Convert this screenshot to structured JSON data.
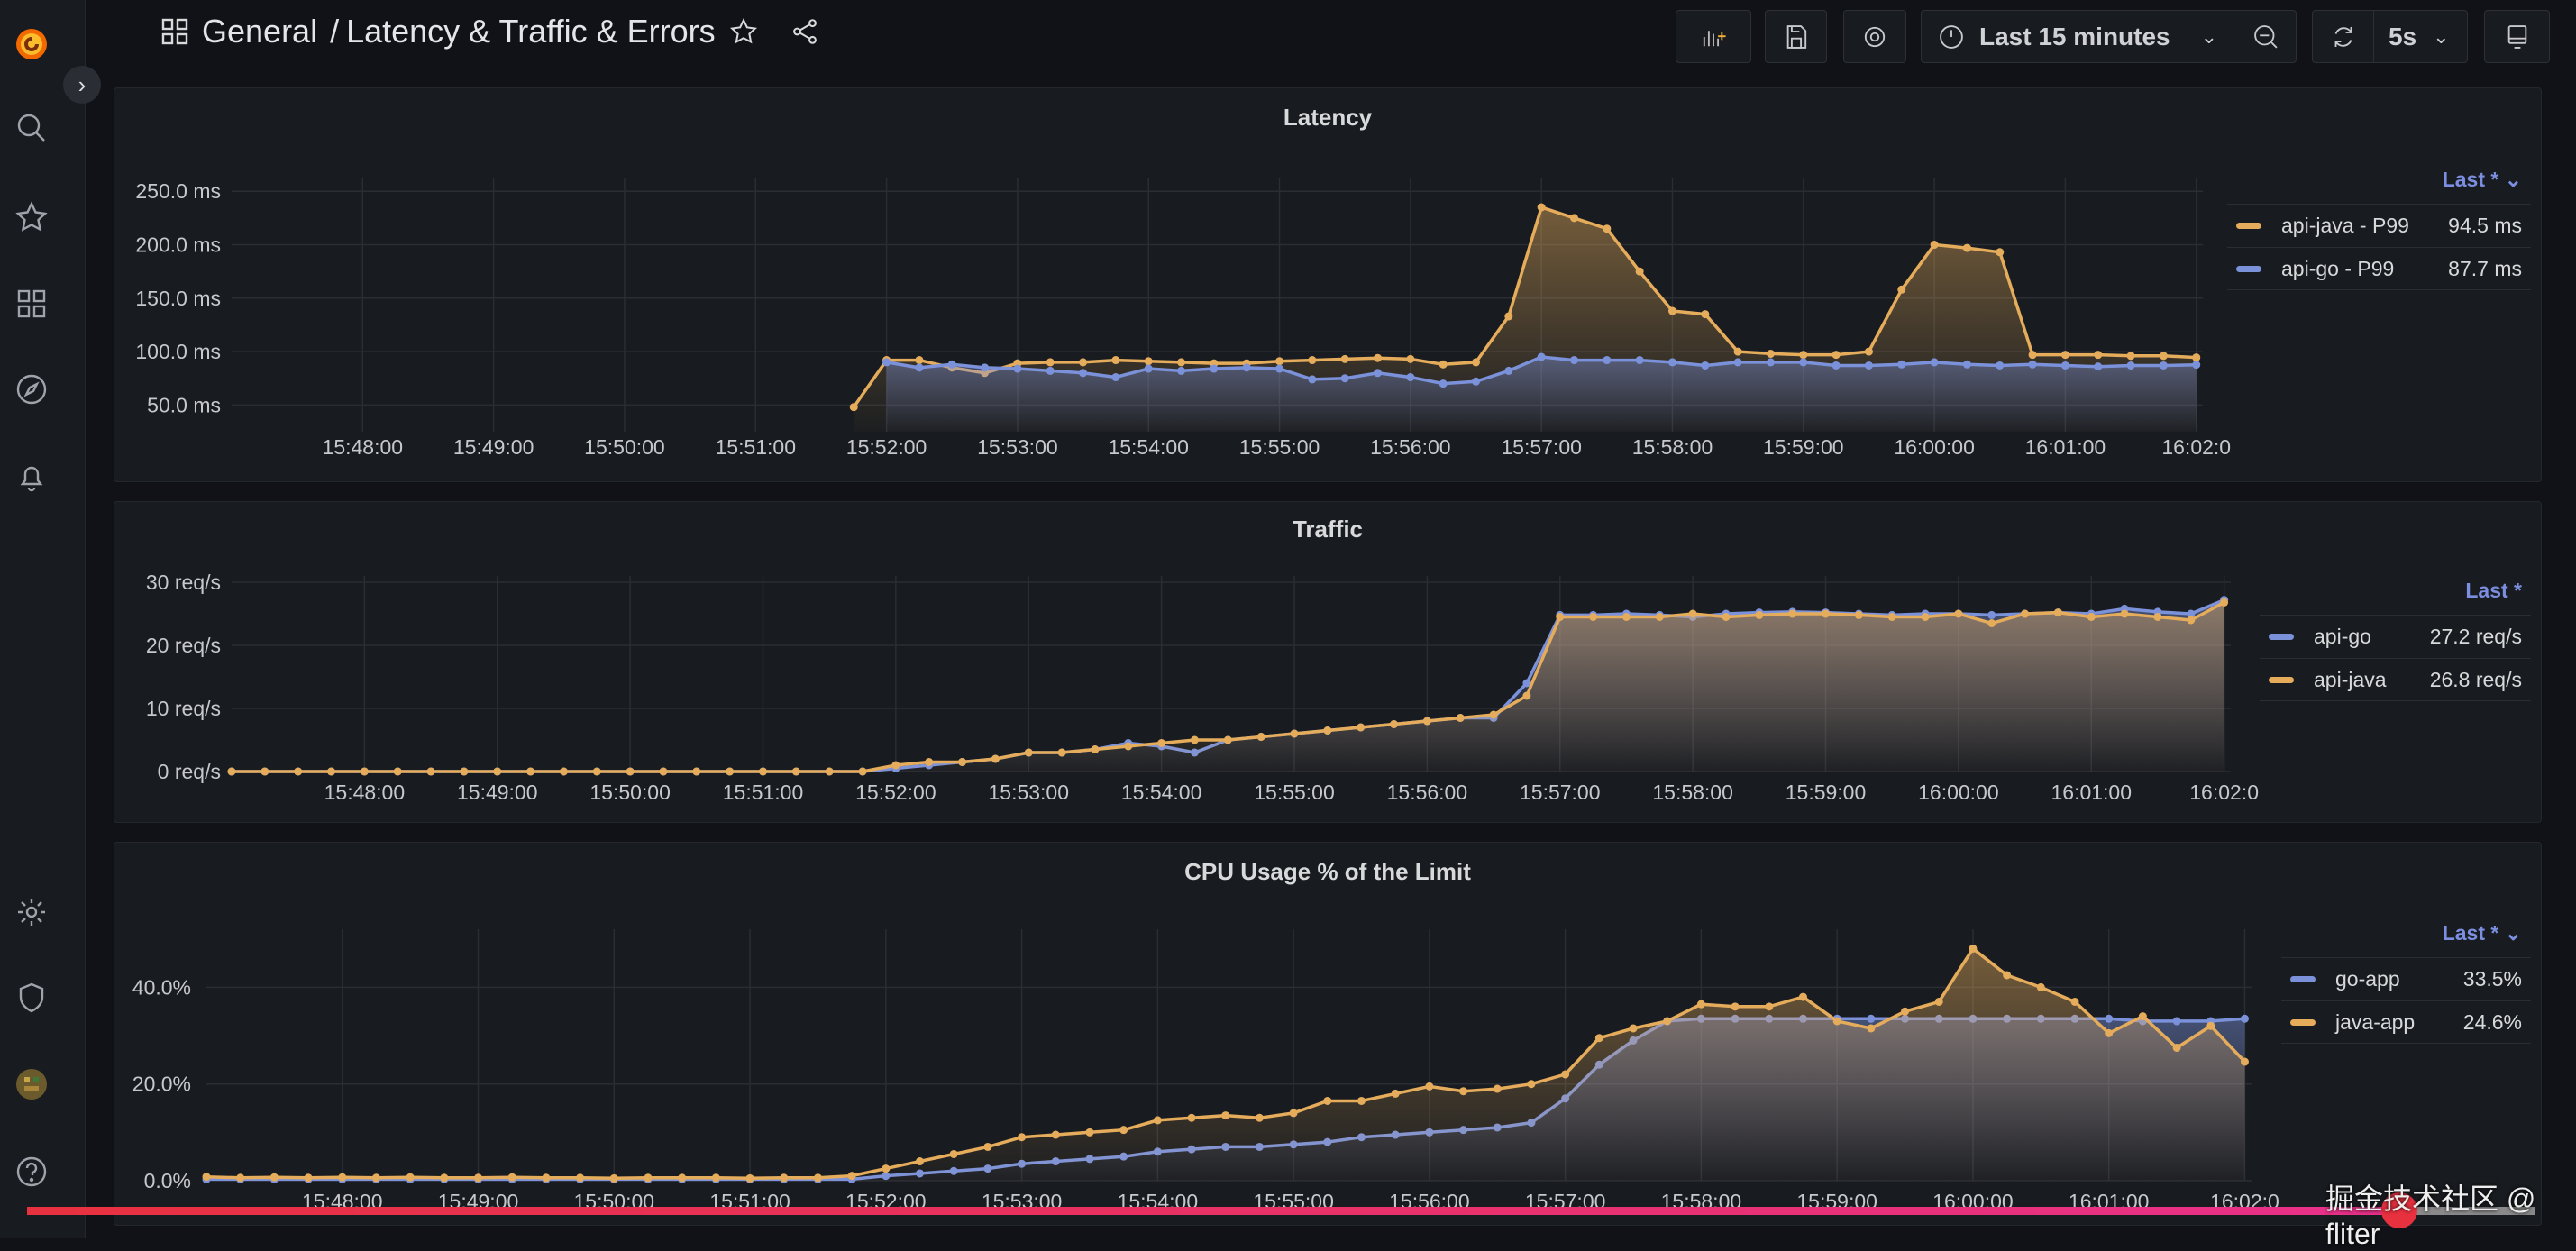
{
  "header": {
    "folder": "General",
    "separator": "/",
    "dashboard": "Latency & Traffic & Errors",
    "time_range": "Last 15 minutes",
    "refresh_interval": "5s"
  },
  "colors": {
    "java": "#e5ac5c",
    "go": "#7b92db",
    "accent": "#f46800"
  },
  "panels": [
    {
      "title": "Latency",
      "legend_header": "Last *",
      "legend": [
        {
          "name": "api-java - P99",
          "value": "94.5 ms",
          "color": "#e5ac5c"
        },
        {
          "name": "api-go - P99",
          "value": "87.7 ms",
          "color": "#7b92db"
        }
      ]
    },
    {
      "title": "Traffic",
      "legend_header": "Last *",
      "legend": [
        {
          "name": "api-go",
          "value": "27.2 req/s",
          "color": "#7b92db"
        },
        {
          "name": "api-java",
          "value": "26.8 req/s",
          "color": "#e5ac5c"
        }
      ]
    },
    {
      "title": "CPU Usage % of the Limit",
      "legend_header": "Last *",
      "legend": [
        {
          "name": "go-app",
          "value": "33.5%",
          "color": "#7b92db"
        },
        {
          "name": "java-app",
          "value": "24.6%",
          "color": "#e5ac5c"
        }
      ]
    }
  ],
  "watermark": "掘金技术社区 @ fliter",
  "video_progress": 0.946,
  "chart_data": [
    {
      "type": "line",
      "title": "Latency",
      "ylim": [
        25,
        262
      ],
      "yticks": [
        50,
        100,
        150,
        200,
        250
      ],
      "ytick_labels": [
        "50.0 ms",
        "100.0 ms",
        "150.0 ms",
        "200.0 ms",
        "250.0 ms"
      ],
      "xticks": [
        "15:48:00",
        "15:49:00",
        "15:50:00",
        "15:51:00",
        "15:52:00",
        "15:53:00",
        "15:54:00",
        "15:55:00",
        "15:56:00",
        "15:57:00",
        "15:58:00",
        "15:59:00",
        "16:00:00",
        "16:01:00",
        "16:02:0"
      ],
      "x_start": "15:51:45",
      "x_step_s": 15,
      "series": [
        {
          "name": "api-java - P99",
          "color": "#e5ac5c",
          "values": [
            48,
            92,
            92,
            85,
            80,
            89,
            90,
            90,
            92,
            91,
            90,
            89,
            89,
            91,
            92,
            93,
            94,
            93,
            88,
            90,
            133,
            235,
            225,
            215,
            175,
            138,
            135,
            100,
            98,
            97,
            97,
            100,
            158,
            200,
            197,
            193,
            97,
            97,
            97,
            96,
            96,
            94.5
          ]
        },
        {
          "name": "api-go - P99",
          "color": "#7b92db",
          "values": [
            null,
            90,
            85,
            88,
            85,
            84,
            82,
            80,
            76,
            84,
            82,
            84,
            85,
            84,
            74,
            75,
            80,
            76,
            70,
            72,
            82,
            95,
            92,
            92,
            92,
            90,
            87,
            90,
            90,
            90,
            87,
            87,
            88,
            90,
            88,
            87,
            88,
            87,
            86,
            87,
            87,
            87.7
          ]
        }
      ]
    },
    {
      "type": "line",
      "title": "Traffic",
      "ylim": [
        0,
        31
      ],
      "yticks": [
        0,
        10,
        20,
        30
      ],
      "ytick_labels": [
        "0 req/s",
        "10 req/s",
        "20 req/s",
        "30 req/s"
      ],
      "xticks": [
        "15:48:00",
        "15:49:00",
        "15:50:00",
        "15:51:00",
        "15:52:00",
        "15:53:00",
        "15:54:00",
        "15:55:00",
        "15:56:00",
        "15:57:00",
        "15:58:00",
        "15:59:00",
        "16:00:00",
        "16:01:00",
        "16:02:0"
      ],
      "x_start": "15:47:00",
      "x_step_s": 15,
      "series": [
        {
          "name": "api-go",
          "color": "#7b92db",
          "values": [
            0,
            0,
            0,
            0,
            0,
            0,
            0,
            0,
            0,
            0,
            0,
            0,
            0,
            0,
            0,
            0,
            0,
            0,
            0,
            0,
            0.5,
            1,
            1.5,
            2,
            3,
            3,
            3.5,
            4.5,
            4,
            3,
            5,
            5.5,
            6,
            6.5,
            7,
            7.5,
            8,
            8.5,
            8.5,
            14,
            24.8,
            24.8,
            25,
            24.8,
            24.5,
            25,
            25.2,
            25.3,
            25.2,
            25,
            24.8,
            25,
            25,
            24.8,
            25,
            25.2,
            25,
            25.8,
            25.3,
            25,
            27.2
          ]
        },
        {
          "name": "api-java",
          "color": "#e5ac5c",
          "values": [
            0,
            0,
            0,
            0,
            0,
            0,
            0,
            0,
            0,
            0,
            0,
            0,
            0,
            0,
            0,
            0,
            0,
            0,
            0,
            0,
            1,
            1.5,
            1.5,
            2,
            3,
            3,
            3.5,
            4,
            4.5,
            5,
            5,
            5.5,
            6,
            6.5,
            7,
            7.5,
            8,
            8.5,
            9,
            12,
            24.5,
            24.5,
            24.5,
            24.5,
            25,
            24.5,
            24.8,
            25,
            25,
            24.8,
            24.5,
            24.5,
            25,
            23.5,
            25,
            25.2,
            24.5,
            25,
            24.5,
            24,
            26.8
          ]
        }
      ]
    },
    {
      "type": "line",
      "title": "CPU Usage % of the Limit",
      "ylim": [
        0,
        52
      ],
      "yticks": [
        0,
        20,
        40
      ],
      "ytick_labels": [
        "0.0%",
        "20.0%",
        "40.0%"
      ],
      "xticks": [
        "15:48:00",
        "15:49:00",
        "15:50:00",
        "15:51:00",
        "15:52:00",
        "15:53:00",
        "15:54:00",
        "15:55:00",
        "15:56:00",
        "15:57:00",
        "15:58:00",
        "15:59:00",
        "16:00:00",
        "16:01:00",
        "16:02:0"
      ],
      "x_start": "15:47:00",
      "x_step_s": 15,
      "series": [
        {
          "name": "go-app",
          "color": "#7b92db",
          "values": [
            0.3,
            0.3,
            0.3,
            0.3,
            0.3,
            0.3,
            0.3,
            0.3,
            0.3,
            0.3,
            0.3,
            0.3,
            0.3,
            0.3,
            0.3,
            0.3,
            0.3,
            0.3,
            0.3,
            0.3,
            1,
            1.5,
            2,
            2.5,
            3.5,
            4,
            4.5,
            5,
            6,
            6.5,
            7,
            7,
            7.5,
            8,
            9,
            9.5,
            10,
            10.5,
            11,
            12,
            17,
            24,
            29,
            33,
            33.5,
            33.5,
            33.5,
            33.5,
            33.5,
            33.5,
            33.5,
            33.5,
            33.5,
            33.5,
            33.5,
            33.5,
            33.5,
            33,
            33,
            33,
            33.5
          ]
        },
        {
          "name": "java-app",
          "color": "#e5ac5c",
          "values": [
            0.8,
            0.6,
            0.7,
            0.6,
            0.7,
            0.6,
            0.7,
            0.6,
            0.6,
            0.7,
            0.6,
            0.6,
            0.5,
            0.6,
            0.6,
            0.6,
            0.5,
            0.6,
            0.6,
            1,
            2.5,
            4,
            5.5,
            7,
            9,
            9.5,
            10,
            10.5,
            12.5,
            13,
            13.5,
            13,
            14,
            16.5,
            16.5,
            18,
            19.5,
            18.5,
            19,
            20,
            22,
            29.5,
            31.5,
            33,
            36.5,
            36,
            36,
            38,
            33,
            31.5,
            35,
            37,
            48,
            42.5,
            40,
            37,
            30.5,
            34,
            27.5,
            32,
            24.6
          ]
        }
      ]
    }
  ]
}
